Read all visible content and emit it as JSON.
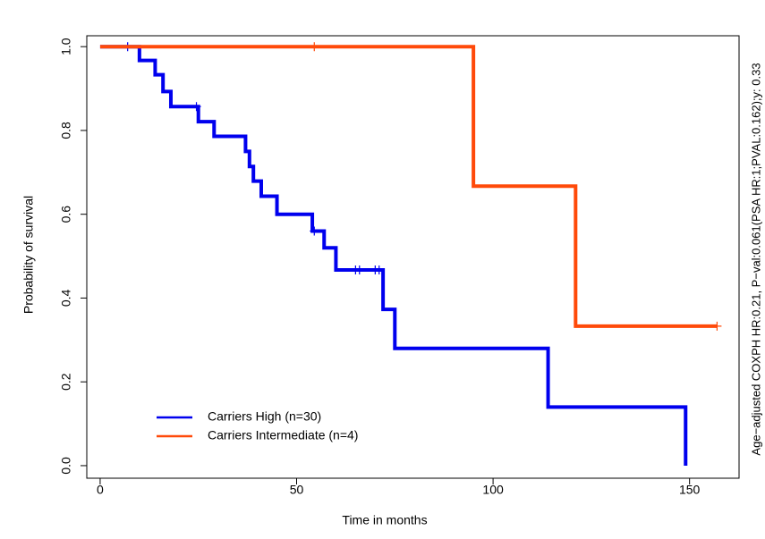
{
  "chart_data": {
    "type": "step",
    "xlabel": "Time in months",
    "ylabel": "Probability of survival",
    "side_text": "Age−adjusted COXPH HR:0.21, P−val:0.061(PSA HR:1;PVAL:0.162);y: 0.33",
    "xlim": [
      -3.4,
      162.6
    ],
    "ylim": [
      -0.03,
      1.026
    ],
    "xticks": [
      0,
      50,
      100,
      150
    ],
    "yticks": [
      {
        "value": 0,
        "label": "0.0"
      },
      0.2,
      0.4,
      0.6,
      0.8,
      {
        "value": 1,
        "label": "1.0"
      }
    ],
    "series": [
      {
        "name": "Carriers High (n=30)",
        "color": "#0000ee",
        "x": [
          0,
          10,
          14,
          16,
          18,
          25,
          29,
          37,
          38,
          39,
          41,
          45,
          54,
          57,
          60,
          72,
          75,
          114,
          149
        ],
        "values": [
          1,
          0.967,
          0.933,
          0.893,
          0.857,
          0.821,
          0.786,
          0.75,
          0.714,
          0.679,
          0.643,
          0.6,
          0.56,
          0.52,
          0.467,
          0.373,
          0.28,
          0.14,
          0
        ],
        "censor_x": [
          7,
          24.5,
          54.5,
          65,
          66,
          70,
          71
        ],
        "censor_values": [
          1,
          0.857,
          0.56,
          0.467,
          0.467,
          0.467,
          0.467
        ]
      },
      {
        "name": "Carriers Intermediate (n=4)",
        "color": "#ff4a0a",
        "x": [
          0,
          95,
          121,
          157
        ],
        "values": [
          1,
          0.667,
          0.333,
          0.333
        ],
        "censor_x": [
          54.5,
          157
        ],
        "censor_values": [
          1,
          0.333
        ]
      }
    ]
  }
}
